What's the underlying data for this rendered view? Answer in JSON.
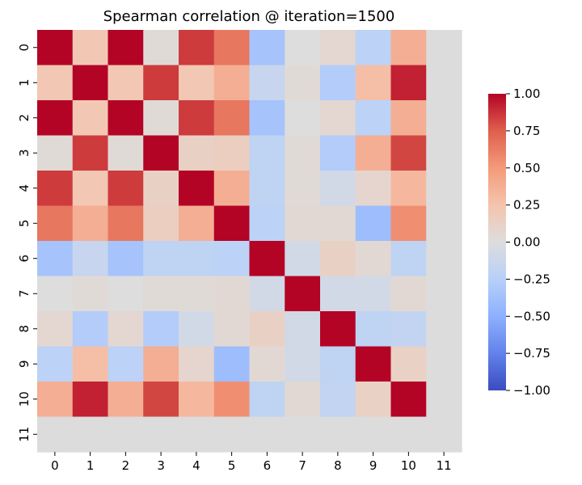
{
  "chart_data": {
    "type": "heatmap",
    "title": "Spearman correlation @ iteration=1500",
    "xlabel": "",
    "ylabel": "",
    "x_categories": [
      "0",
      "1",
      "2",
      "3",
      "4",
      "5",
      "6",
      "7",
      "8",
      "9",
      "10",
      "11"
    ],
    "y_categories": [
      "0",
      "1",
      "2",
      "3",
      "4",
      "5",
      "6",
      "7",
      "8",
      "9",
      "10",
      "11"
    ],
    "colormap": "coolwarm",
    "vmin": -1.0,
    "vmax": 1.0,
    "missing_color": "#dcdcdc",
    "colorbar": {
      "ticks": [
        1.0,
        0.75,
        0.5,
        0.25,
        0.0,
        -0.25,
        -0.5,
        -0.75,
        -1.0
      ],
      "tick_labels": [
        "1.00",
        "0.75",
        "0.50",
        "0.25",
        "0.00",
        "−0.25",
        "−0.50",
        "−0.75",
        "−1.00"
      ],
      "placement": "right"
    },
    "values": [
      [
        1.0,
        0.22,
        1.0,
        0.03,
        0.85,
        0.65,
        -0.35,
        0.0,
        0.07,
        -0.22,
        0.38,
        null
      ],
      [
        0.22,
        1.0,
        0.22,
        0.85,
        0.22,
        0.38,
        -0.15,
        0.03,
        -0.28,
        0.28,
        0.92,
        null
      ],
      [
        1.0,
        0.22,
        1.0,
        0.03,
        0.85,
        0.65,
        -0.35,
        0.0,
        0.07,
        -0.22,
        0.38,
        null
      ],
      [
        0.03,
        0.85,
        0.03,
        1.0,
        0.13,
        0.15,
        -0.2,
        0.03,
        -0.28,
        0.38,
        0.82,
        null
      ],
      [
        0.85,
        0.22,
        0.85,
        0.13,
        1.0,
        0.38,
        -0.2,
        0.03,
        -0.08,
        0.08,
        0.32,
        null
      ],
      [
        0.65,
        0.38,
        0.65,
        0.15,
        0.38,
        1.0,
        -0.22,
        0.05,
        0.05,
        -0.4,
        0.55,
        null
      ],
      [
        -0.35,
        -0.15,
        -0.35,
        -0.2,
        -0.2,
        -0.22,
        1.0,
        -0.08,
        0.13,
        0.05,
        -0.2,
        null
      ],
      [
        0.0,
        0.03,
        0.0,
        0.03,
        0.03,
        0.05,
        -0.08,
        1.0,
        -0.08,
        -0.08,
        0.05,
        null
      ],
      [
        0.07,
        -0.28,
        0.07,
        -0.28,
        -0.08,
        0.05,
        0.13,
        -0.08,
        1.0,
        -0.2,
        -0.18,
        null
      ],
      [
        -0.22,
        0.28,
        -0.22,
        0.38,
        0.08,
        -0.4,
        0.05,
        -0.08,
        -0.2,
        1.0,
        0.12,
        null
      ],
      [
        0.38,
        0.92,
        0.38,
        0.82,
        0.32,
        0.55,
        -0.2,
        0.05,
        -0.18,
        0.12,
        1.0,
        null
      ],
      [
        null,
        null,
        null,
        null,
        null,
        null,
        null,
        null,
        null,
        null,
        null,
        null
      ]
    ]
  }
}
